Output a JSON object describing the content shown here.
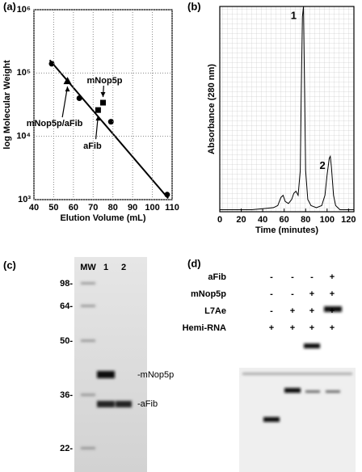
{
  "chart_data": [
    {
      "type": "scatter",
      "panel_label": "(a)",
      "xlabel": "Elution Volume  (mL)",
      "ylabel": "log Molecular Weight",
      "xlim": [
        40,
        110
      ],
      "xticks": [
        40,
        50,
        60,
        70,
        80,
        90,
        100,
        110
      ],
      "ylim": [
        1000,
        1000000
      ],
      "log_y": true,
      "yticks": [
        {
          "value": 1000,
          "label": "10³"
        },
        {
          "value": 10000,
          "label": "10⁴"
        },
        {
          "value": 100000,
          "label": "10⁵"
        },
        {
          "value": 1000000,
          "label": "10⁶"
        }
      ],
      "grid": true,
      "series": [
        {
          "marker": "circle",
          "color": "#000000",
          "x": [
            49,
            63,
            79,
            107.5
          ],
          "values": [
            140000,
            40000,
            17000,
            1200
          ]
        },
        {
          "marker": "line",
          "color": "#000000",
          "x": [
            48,
            108
          ],
          "values": [
            160000,
            1050
          ]
        },
        {
          "name": "mNop5p/aFib",
          "marker": "triangle",
          "color": "#000000",
          "x": [
            57
          ],
          "values": [
            75000
          ]
        },
        {
          "name": "mNop5p",
          "marker": "square",
          "color": "#000000",
          "x": [
            75
          ],
          "values": [
            34000
          ]
        },
        {
          "name": "aFib",
          "marker": "square",
          "color": "#000000",
          "x": [
            72.5
          ],
          "values": [
            26000
          ]
        }
      ]
    },
    {
      "type": "line",
      "panel_label": "(b)",
      "xlabel": "Time (minutes)",
      "ylabel": "Absorbance (280 nm)",
      "xlim": [
        0,
        125
      ],
      "xticks": [
        0,
        20,
        40,
        60,
        80,
        100,
        120
      ],
      "ylim": [
        0,
        100
      ],
      "x": [
        0,
        10,
        20,
        30,
        40,
        50,
        54,
        57,
        59,
        61,
        64,
        67,
        69,
        71,
        73,
        75,
        76,
        77,
        78,
        79,
        80,
        82,
        85,
        90,
        95,
        98,
        100,
        102,
        103,
        104,
        106,
        108,
        112,
        120,
        125
      ],
      "series": [
        {
          "color": "#000000",
          "values": [
            1,
            1,
            1,
            1,
            1.5,
            2,
            3,
            7,
            8,
            5,
            4,
            6,
            9,
            10,
            8,
            20,
            60,
            95,
            100,
            60,
            20,
            6,
            3,
            2,
            3,
            8,
            18,
            26,
            27,
            22,
            8,
            3,
            1,
            1,
            1
          ]
        }
      ],
      "annotations": [
        {
          "text": "1",
          "x": 76,
          "y": 100
        },
        {
          "text": "2",
          "x": 103,
          "y": 27
        }
      ]
    }
  ],
  "gel_c": {
    "panel_label": "(c)",
    "lane_labels": [
      "MW",
      "1",
      "2"
    ],
    "markers": [
      "98-",
      "64-",
      "50-",
      "36-",
      "22-"
    ],
    "bands": [
      "-mNop5p",
      "-aFib"
    ]
  },
  "gel_d": {
    "panel_label": "(d)",
    "rows": [
      {
        "label": "aFib",
        "lanes": [
          "-",
          "-",
          "-",
          "+"
        ]
      },
      {
        "label": "mNop5p",
        "lanes": [
          "-",
          "-",
          "+",
          "+"
        ]
      },
      {
        "label": "L7Ae",
        "lanes": [
          "-",
          "+",
          "+",
          "+"
        ]
      },
      {
        "label": "Hemi-RNA",
        "lanes": [
          "+",
          "+",
          "+",
          "+"
        ]
      }
    ]
  }
}
